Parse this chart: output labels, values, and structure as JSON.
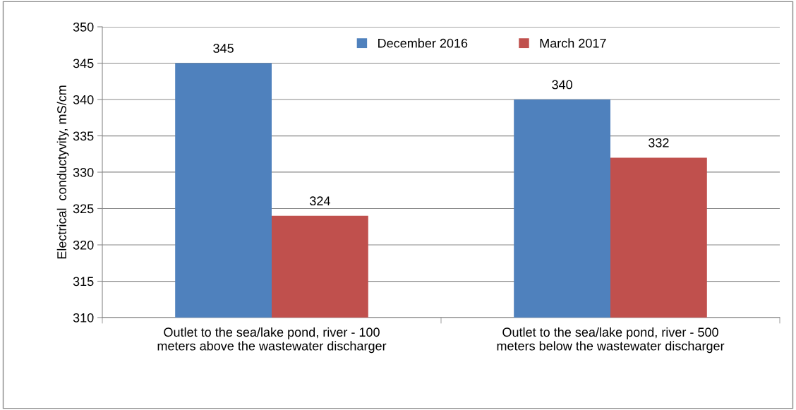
{
  "chart_data": {
    "type": "bar",
    "ylabel": "Electrical  conductyvity, mS/cm",
    "categories": [
      "Outlet to the sea/lake pond, river - 100\nmeters above the wastewater discharger",
      "Outlet to the sea/lake pond, river - 500\nmeters below the wastewater discharger"
    ],
    "series": [
      {
        "name": "December 2016",
        "color": "#4f81bd",
        "values": [
          345,
          340
        ]
      },
      {
        "name": "March 2017",
        "color": "#c0504d",
        "values": [
          324,
          332
        ]
      }
    ],
    "ylim": [
      310,
      350
    ],
    "yticks": [
      310,
      315,
      320,
      325,
      330,
      335,
      340,
      345,
      350
    ],
    "grid": "y",
    "legend": "top",
    "data_labels": true
  }
}
